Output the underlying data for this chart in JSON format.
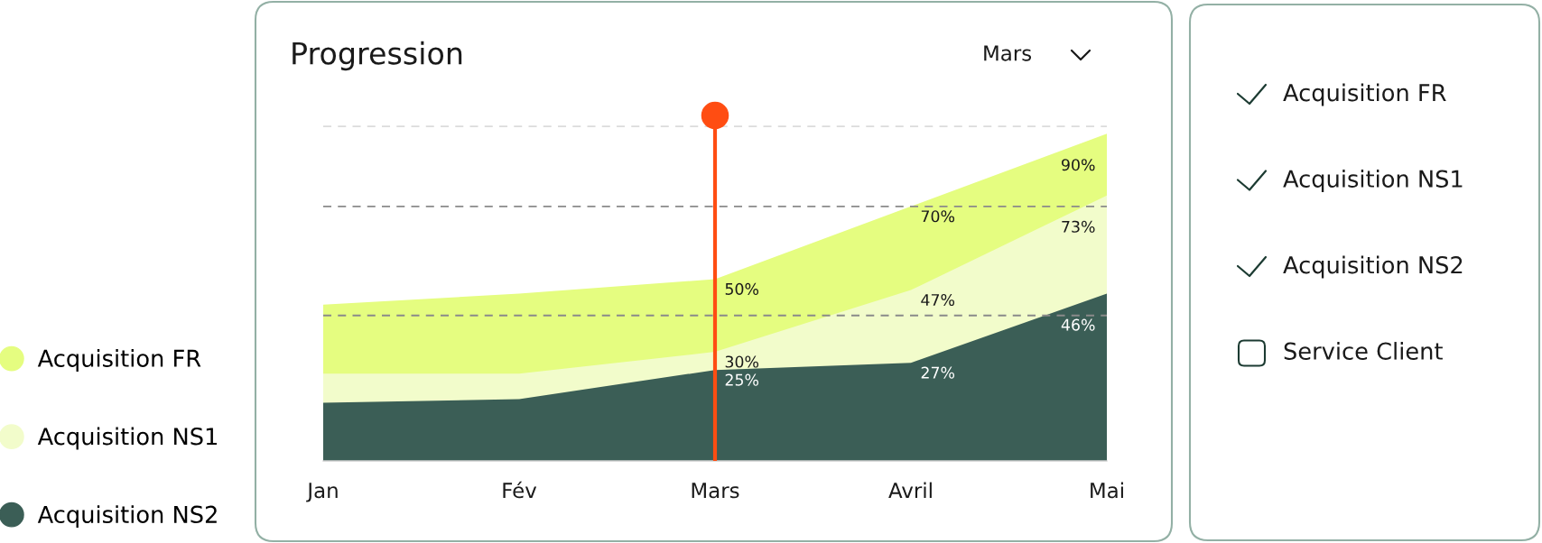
{
  "chart_data": [
    {
      "type": "area",
      "title": "Progression",
      "annotations": [
        "Mars"
      ],
      "categories": [
        "Jan",
        "Fév",
        "Mars",
        "Avril",
        "Mai"
      ],
      "series": [
        {
          "name": "Acquisition FR",
          "color": "#e5fd80",
          "values": [
            43,
            46,
            50,
            70,
            90
          ],
          "value_labels": [
            null,
            null,
            "50%",
            "70%",
            "90%"
          ]
        },
        {
          "name": "Acquisition NS1",
          "color": "#f2fccb",
          "values": [
            24,
            24,
            30,
            47,
            73
          ],
          "value_labels": [
            null,
            null,
            "30%",
            "47%",
            "73%"
          ]
        },
        {
          "name": "Acquisition NS2",
          "color": "#3b5e56",
          "values": [
            16,
            17,
            25,
            27,
            46
          ],
          "value_labels": [
            null,
            null,
            "25%",
            "27%",
            "46%"
          ]
        }
      ],
      "ylim": [
        0,
        95
      ],
      "tick_labels": "x",
      "legend": "left",
      "ref_lines": [
        {
          "axis": "y",
          "value": 40,
          "color": "#8a8a8a",
          "line_style": "dashed"
        },
        {
          "axis": "y",
          "value": 70,
          "color": "#8a8a8a",
          "line_style": "dashed"
        },
        {
          "axis": "y",
          "value": 92,
          "color": "#dcdcdc",
          "line_style": "dashed"
        },
        {
          "axis": "x",
          "value": "Mars",
          "color": "#ff4d12"
        }
      ]
    },
    {
      "type": "other",
      "annotations": [
        "Acquisition FR",
        "Acquisition NS1",
        "Acquisition NS2",
        "Service Client"
      ]
    }
  ]
}
